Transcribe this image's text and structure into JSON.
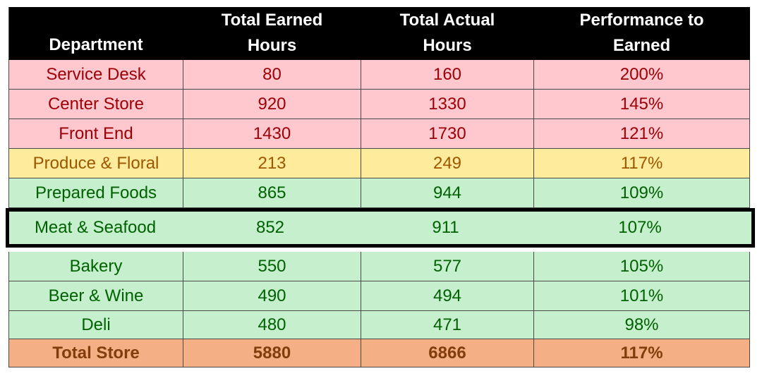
{
  "table": {
    "headers": [
      [
        "Department"
      ],
      [
        "Total Earned",
        "Hours"
      ],
      [
        "Total Actual",
        "Hours"
      ],
      [
        "Performance to",
        "Earned"
      ]
    ],
    "rows_top": [
      {
        "status": "red",
        "department": "Service Desk",
        "earned": "80",
        "actual": "160",
        "performance": "200%"
      },
      {
        "status": "red",
        "department": "Center Store",
        "earned": "920",
        "actual": "1330",
        "performance": "145%"
      },
      {
        "status": "red",
        "department": "Front End",
        "earned": "1430",
        "actual": "1730",
        "performance": "121%"
      },
      {
        "status": "yellow",
        "department": "Produce & Floral",
        "earned": "213",
        "actual": "249",
        "performance": "117%"
      },
      {
        "status": "green",
        "department": "Prepared Foods",
        "earned": "865",
        "actual": "944",
        "performance": "109%"
      }
    ],
    "highlighted_row": {
      "status": "green",
      "department": "Meat & Seafood",
      "earned": "852",
      "actual": "911",
      "performance": "107%"
    },
    "rows_bottom": [
      {
        "status": "green",
        "department": "Bakery",
        "earned": "550",
        "actual": "577",
        "performance": "105%"
      },
      {
        "status": "green",
        "department": "Beer & Wine",
        "earned": "490",
        "actual": "494",
        "performance": "101%"
      },
      {
        "status": "green",
        "department": "Deli",
        "earned": "480",
        "actual": "471",
        "performance": "98%"
      }
    ],
    "total_row": {
      "department": "Total Store",
      "earned": "5880",
      "actual": "6866",
      "performance": "117%"
    }
  },
  "colors": {
    "red_fill": "#ffc7ce",
    "red_text": "#9c0006",
    "yellow_fill": "#ffeb9c",
    "yellow_text": "#9c5700",
    "green_fill": "#c6efce",
    "green_text": "#006100",
    "total_fill": "#f4b084",
    "total_text": "#833c0b",
    "header_fill": "#000000",
    "header_text": "#ffffff"
  }
}
